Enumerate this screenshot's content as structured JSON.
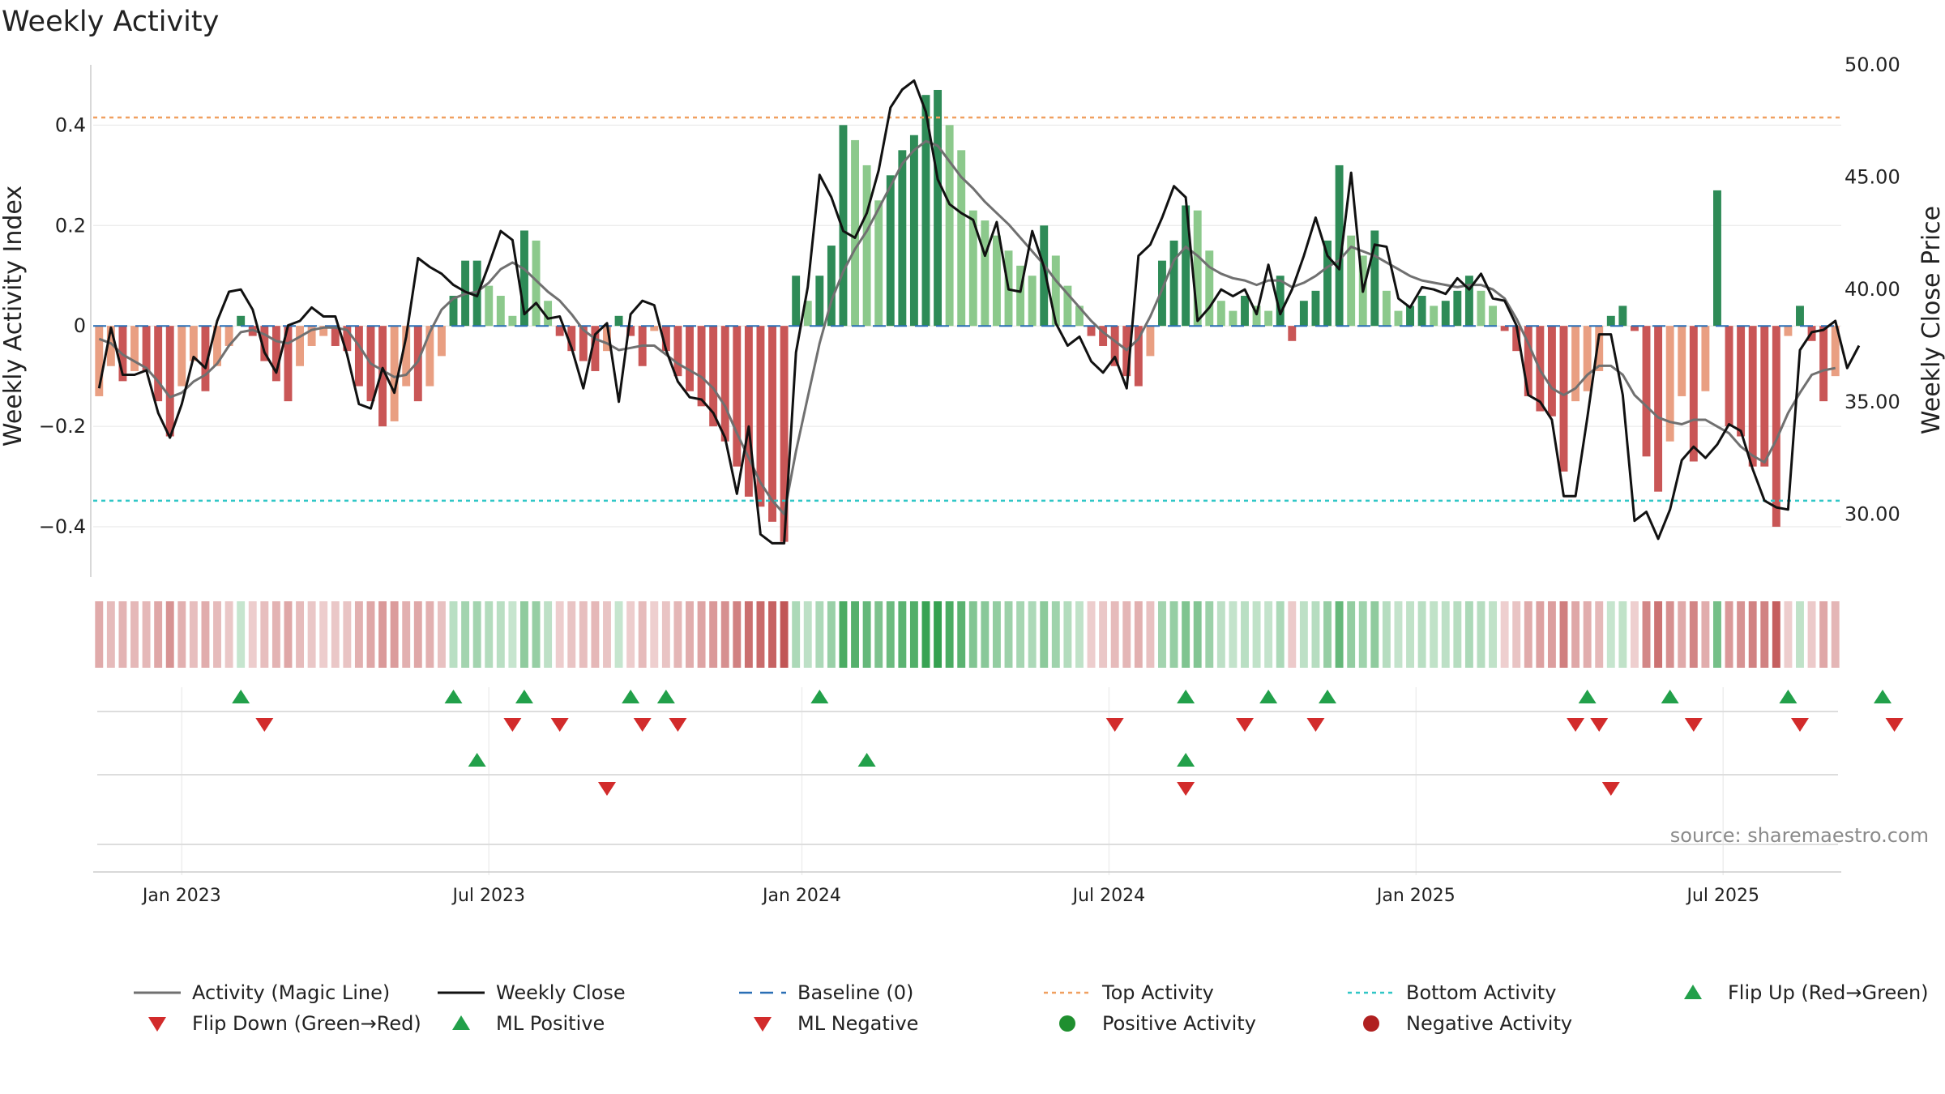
{
  "chart_data": {
    "type": "bar",
    "title": "Weekly Activity",
    "source": "source: sharemaestro.com",
    "ylabel_left": "Weekly Activity Index",
    "ylabel_right": "Weekly Close Price",
    "ylim_left": [
      -0.5,
      0.52
    ],
    "ylim_right": [
      27.2,
      50.0
    ],
    "left_ticks": [
      {
        "v": 0.4,
        "label": "0.4"
      },
      {
        "v": 0.2,
        "label": "0.2"
      },
      {
        "v": 0,
        "label": "0"
      },
      {
        "v": -0.2,
        "label": "−0.2"
      },
      {
        "v": -0.4,
        "label": "−0.4"
      }
    ],
    "right_ticks": [
      {
        "v": 50,
        "label": "50.00"
      },
      {
        "v": 45,
        "label": "45.00"
      },
      {
        "v": 40,
        "label": "40.00"
      },
      {
        "v": 35,
        "label": "35.00"
      },
      {
        "v": 30,
        "label": "30.00"
      }
    ],
    "date_ticks": [
      {
        "week": 7,
        "label": "Jan 2023"
      },
      {
        "week": 33,
        "label": "Jul 2023"
      },
      {
        "week": 59.5,
        "label": "Jan 2024"
      },
      {
        "week": 85.5,
        "label": "Jul 2024"
      },
      {
        "week": 111.5,
        "label": "Jan 2025"
      },
      {
        "week": 137.5,
        "label": "Jul 2025"
      }
    ],
    "baseline": 0,
    "top_activity": 0.415,
    "bottom_activity": -0.348,
    "activity_index": [
      -0.14,
      -0.08,
      -0.11,
      -0.09,
      -0.09,
      -0.15,
      -0.22,
      -0.12,
      -0.07,
      -0.13,
      -0.08,
      -0.04,
      0.02,
      -0.02,
      -0.07,
      -0.11,
      -0.15,
      -0.08,
      -0.04,
      -0.02,
      -0.04,
      -0.05,
      -0.12,
      -0.15,
      -0.2,
      -0.19,
      -0.12,
      -0.15,
      -0.12,
      -0.06,
      0.06,
      0.13,
      0.13,
      0.08,
      0.06,
      0.02,
      0.19,
      0.17,
      0.05,
      -0.02,
      -0.05,
      -0.07,
      -0.09,
      -0.05,
      0.02,
      -0.02,
      -0.08,
      -0.01,
      -0.05,
      -0.1,
      -0.13,
      -0.16,
      -0.2,
      -0.23,
      -0.28,
      -0.34,
      -0.36,
      -0.39,
      -0.43,
      0.1,
      0.05,
      0.1,
      0.16,
      0.4,
      0.37,
      0.32,
      0.25,
      0.3,
      0.35,
      0.38,
      0.46,
      0.47,
      0.4,
      0.35,
      0.23,
      0.21,
      0.18,
      0.15,
      0.12,
      0.1,
      0.2,
      0.14,
      0.08,
      0.04,
      -0.02,
      -0.04,
      -0.08,
      -0.1,
      -0.12,
      -0.06,
      0.13,
      0.17,
      0.24,
      0.23,
      0.15,
      0.05,
      0.03,
      0.06,
      0.04,
      0.03,
      0.1,
      -0.03,
      0.05,
      0.07,
      0.17,
      0.32,
      0.18,
      0.14,
      0.19,
      0.07,
      0.03,
      0.04,
      0.06,
      0.04,
      0.05,
      0.07,
      0.1,
      0.07,
      0.04,
      -0.01,
      -0.05,
      -0.14,
      -0.17,
      -0.18,
      -0.29,
      -0.15,
      -0.13,
      -0.09,
      0.02,
      0.04,
      -0.01,
      -0.26,
      -0.33,
      -0.23,
      -0.14,
      -0.27,
      -0.13,
      0.27,
      -0.2,
      -0.22,
      -0.28,
      -0.28,
      -0.4,
      -0.02,
      0.04,
      -0.03,
      -0.15,
      -0.1
    ],
    "weekly_close": [
      35.6,
      38.3,
      36.2,
      36.2,
      36.4,
      34.5,
      33.4,
      34.9,
      37.0,
      36.5,
      38.6,
      39.9,
      40.0,
      39.1,
      37.2,
      36.3,
      38.4,
      38.6,
      39.2,
      38.8,
      38.8,
      37.1,
      34.9,
      34.7,
      36.5,
      35.4,
      37.9,
      41.4,
      41.0,
      40.7,
      40.2,
      39.9,
      39.7,
      41.1,
      42.6,
      42.2,
      38.9,
      39.4,
      38.7,
      38.8,
      37.4,
      35.6,
      38.0,
      38.5,
      35.0,
      38.9,
      39.5,
      39.3,
      37.3,
      35.9,
      35.2,
      35.1,
      34.5,
      33.4,
      30.9,
      33.9,
      29.1,
      28.7,
      28.7,
      37.2,
      40.1,
      45.1,
      44.1,
      42.6,
      42.3,
      43.4,
      45.3,
      48.1,
      48.9,
      49.3,
      47.9,
      44.9,
      43.8,
      43.4,
      43.1,
      41.5,
      43.0,
      40.0,
      39.9,
      42.6,
      41.0,
      38.5,
      37.5,
      37.9,
      36.8,
      36.3,
      37.0,
      35.6,
      41.5,
      42.0,
      43.2,
      44.6,
      44.1,
      38.6,
      39.2,
      40.0,
      39.7,
      40.0,
      38.9,
      41.1,
      38.9,
      40.0,
      41.5,
      43.2,
      41.5,
      40.9,
      45.2,
      39.9,
      42.0,
      41.9,
      39.6,
      39.2,
      40.1,
      40.0,
      39.8,
      40.5,
      40.0,
      40.7,
      39.6,
      39.5,
      38.4,
      35.3,
      35.0,
      34.2,
      30.8,
      30.8,
      34.3,
      38.0,
      38.0,
      35.3,
      29.7,
      30.1,
      28.9,
      30.2,
      32.4,
      33.0,
      32.5,
      33.1,
      34.0,
      33.7,
      32.0,
      30.6,
      30.3,
      30.2,
      37.3,
      38.1,
      38.2,
      38.6,
      36.5,
      37.5
    ],
    "magic_line": [
      37.8,
      37.6,
      37.1,
      36.8,
      36.5,
      35.9,
      35.2,
      35.4,
      35.9,
      36.2,
      36.7,
      37.5,
      38.1,
      38.2,
      38.0,
      37.7,
      37.6,
      37.9,
      38.2,
      38.3,
      38.3,
      38.2,
      37.5,
      36.7,
      36.4,
      36.1,
      36.2,
      36.8,
      38.1,
      39.1,
      39.6,
      39.8,
      39.9,
      40.3,
      40.9,
      41.2,
      40.9,
      40.4,
      39.9,
      39.5,
      38.9,
      38.2,
      37.8,
      37.6,
      37.3,
      37.4,
      37.5,
      37.5,
      37.1,
      36.7,
      36.4,
      36.1,
      35.6,
      34.8,
      33.6,
      32.5,
      31.4,
      30.6,
      30.0,
      32.8,
      35.2,
      37.6,
      39.5,
      40.8,
      41.8,
      42.6,
      43.6,
      44.6,
      45.6,
      46.2,
      46.6,
      46.4,
      45.7,
      45.0,
      44.5,
      43.9,
      43.4,
      42.9,
      42.3,
      41.7,
      41.1,
      40.4,
      39.8,
      39.2,
      38.6,
      38.1,
      37.7,
      37.3,
      37.8,
      38.8,
      40.0,
      41.3,
      41.9,
      41.5,
      41.0,
      40.7,
      40.5,
      40.4,
      40.2,
      40.4,
      40.4,
      40.1,
      40.3,
      40.6,
      41.0,
      41.3,
      41.9,
      41.7,
      41.5,
      41.2,
      40.9,
      40.6,
      40.4,
      40.3,
      40.2,
      40.1,
      40.2,
      40.2,
      40.0,
      39.6,
      38.7,
      37.6,
      36.4,
      35.6,
      35.3,
      35.6,
      36.2,
      36.6,
      36.6,
      36.2,
      35.3,
      34.8,
      34.3,
      34.1,
      34.0,
      34.2,
      34.2,
      33.9,
      33.6,
      33.0,
      32.6,
      32.3,
      33.3,
      34.5,
      35.4,
      36.2,
      36.4,
      36.5
    ],
    "ml_positive_weeks": [
      32,
      65,
      92
    ],
    "ml_negative_weeks": [
      43,
      92,
      128
    ],
    "flip_up_weeks": [
      12,
      30,
      36,
      45,
      48,
      61,
      92,
      99,
      104,
      126,
      133,
      143,
      151
    ],
    "flip_down_weeks": [
      14,
      35,
      39,
      46,
      49,
      86,
      97,
      103,
      125,
      127,
      135,
      144,
      152
    ],
    "legend": [
      {
        "key": "magic-line",
        "label": "Activity (Magic Line)"
      },
      {
        "key": "weekly-close",
        "label": "Weekly Close"
      },
      {
        "key": "baseline",
        "label": "Baseline (0)"
      },
      {
        "key": "top-activity",
        "label": "Top Activity"
      },
      {
        "key": "bottom-activity",
        "label": "Bottom Activity"
      },
      {
        "key": "flip-up",
        "label": "Flip Up (Red→Green)"
      },
      {
        "key": "flip-down",
        "label": "Flip Down (Green→Red)"
      },
      {
        "key": "ml-positive",
        "label": "ML Positive"
      },
      {
        "key": "ml-negative",
        "label": "ML Negative"
      },
      {
        "key": "positive-activity",
        "label": "Positive Activity"
      },
      {
        "key": "negative-activity",
        "label": "Negative Activity"
      }
    ],
    "colors": {
      "pos_dark": "#2e8b57",
      "pos_light": "#8cc98c",
      "neg_dark": "#c95656",
      "neg_light": "#e99f82",
      "magic_line": "#707070",
      "weekly_close": "#111111",
      "baseline": "#2a6fb5",
      "top_activity": "#f0a060",
      "bottom_activity": "#30c6c6",
      "flip_up": "#22a04a",
      "flip_down": "#d22b2b",
      "ml_positive": "#22a04a",
      "ml_negative": "#d22b2b",
      "positive_dot": "#1f8f2f",
      "negative_dot": "#b02020",
      "grid": "#e6e6e6",
      "axis": "#cccccc"
    }
  }
}
